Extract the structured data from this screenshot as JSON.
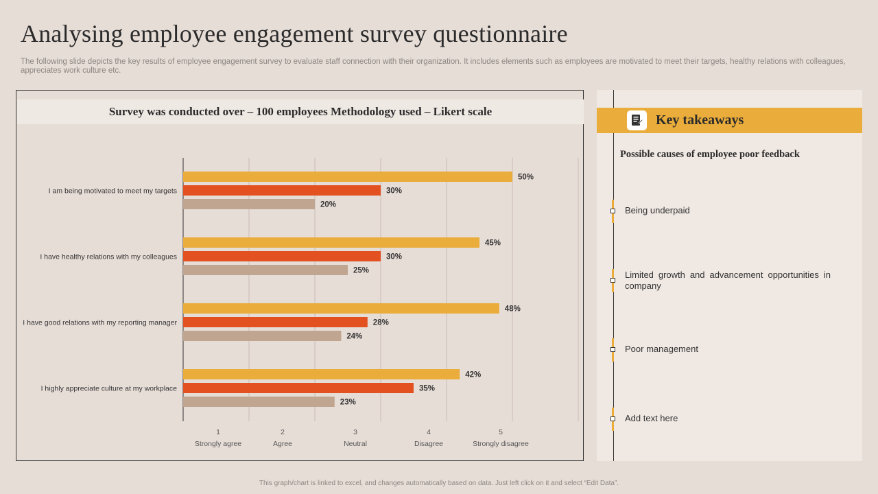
{
  "title": "Analysing employee engagement survey questionnaire",
  "subtitle": "The following slide depicts the key results of employee engagement survey to evaluate staff connection with their organization. It includes elements such as employees are motivated to meet their targets, healthy relations with colleagues, appreciates work culture etc.",
  "chart_header": "Survey was conducted over – 100 employees Methodology used – Likert scale",
  "colors": {
    "series_1": "#eaac3a",
    "series_2": "#e2511f",
    "series_3": "#c0a590",
    "accent": "#eaac3a"
  },
  "chart_data": {
    "type": "bar",
    "orientation": "horizontal",
    "categories": [
      "I am being motivated to meet my targets",
      "I have healthy relations with my colleagues",
      "I have good relations with my reporting manager",
      "I highly appreciate culture at my workplace"
    ],
    "series": [
      {
        "values": [
          50,
          45,
          48,
          42
        ]
      },
      {
        "values": [
          30,
          30,
          28,
          35
        ]
      },
      {
        "values": [
          20,
          25,
          24,
          23
        ]
      }
    ],
    "value_labels": [
      [
        "50%",
        "30%",
        "20%"
      ],
      [
        "45%",
        "30%",
        "25%"
      ],
      [
        "48%",
        "28%",
        "24%"
      ],
      [
        "42%",
        "35%",
        "23%"
      ]
    ],
    "x_ticks": [
      {
        "number": "1",
        "label": "Strongly agree"
      },
      {
        "number": "2",
        "label": "Agree"
      },
      {
        "number": "3",
        "label": "Neutral"
      },
      {
        "number": "4",
        "label": "Disagree"
      },
      {
        "number": "5",
        "label": "Strongly disagree"
      }
    ],
    "xlim": [
      0,
      60
    ],
    "grid": true,
    "legend": "none"
  },
  "takeaways": {
    "title": "Key takeaways",
    "heading": "Possible causes of employee poor feedback",
    "items": [
      "Being underpaid",
      "Limited growth and advancement opportunities in company",
      "Poor management",
      "Add text here"
    ]
  },
  "footer": "This graph/chart is linked to excel, and changes automatically based on data. Just left click on it and select “Edit Data”."
}
